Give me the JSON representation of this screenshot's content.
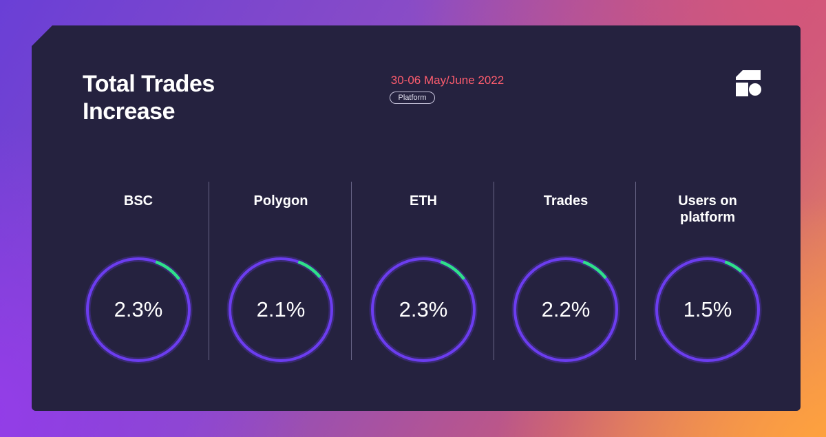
{
  "card": {
    "title": "Total Trades Increase",
    "date_range": "30-06 May/June 2022",
    "badge": "Platform",
    "logo_icon": "brand-logo-icon"
  },
  "colors": {
    "card_bg": "#25223f",
    "accent_ring": "#6c3df0",
    "progress_green": "#2fe08a",
    "date_red": "#ff5d6e"
  },
  "metrics": [
    {
      "label": "BSC",
      "value": "2.3%",
      "progress": 0.023
    },
    {
      "label": "Polygon",
      "value": "2.1%",
      "progress": 0.021
    },
    {
      "label": "ETH",
      "value": "2.3%",
      "progress": 0.023
    },
    {
      "label": "Trades",
      "value": "2.2%",
      "progress": 0.022
    },
    {
      "label": "Users on platform",
      "value": "1.5%",
      "progress": 0.015
    }
  ]
}
